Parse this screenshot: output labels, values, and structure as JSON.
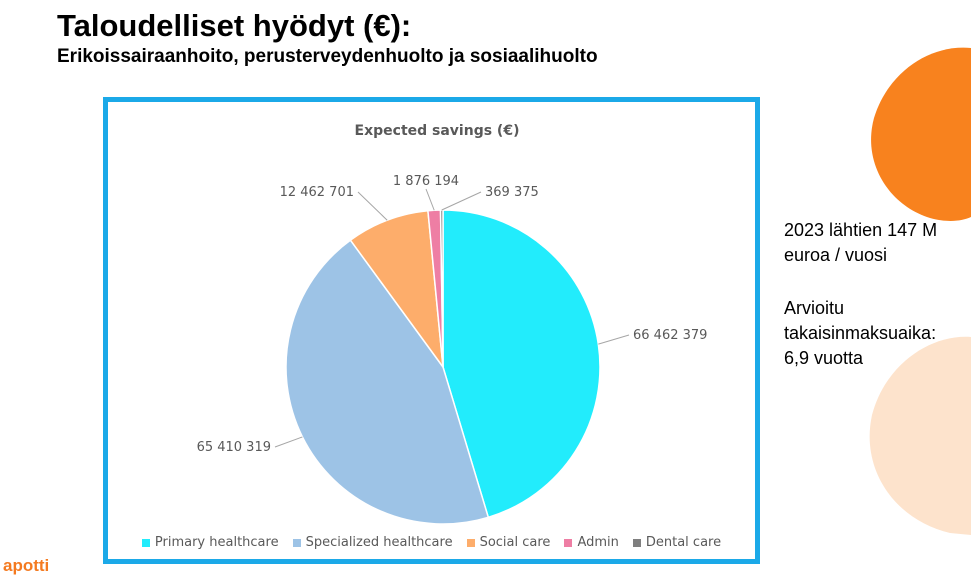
{
  "slide": {
    "title": "Taloudelliset hyödyt (€):",
    "subtitle": "Erikoissairaanhoito, perusterveydenhuolto ja sosiaalihuolto",
    "side_text_1": [
      "2023 lähtien 147 M",
      "euroa / vuosi"
    ],
    "side_text_2": [
      "Arvioitu",
      "takaisinmaksuaika:",
      "6,9 vuotta"
    ],
    "logo": "apotti"
  },
  "chart_data": {
    "type": "pie",
    "title": "Expected savings (€)",
    "legend_position": "bottom",
    "categories": [
      "Primary healthcare",
      "Specialized healthcare",
      "Social care",
      "Admin",
      "Dental care"
    ],
    "values": [
      66462379,
      65410319,
      12462701,
      1876194,
      369375
    ],
    "data_labels": [
      "66 462 379",
      "65 410 319",
      "12 462 701",
      "1 876 194",
      "369 375"
    ],
    "colors": [
      "#22ecfc",
      "#9dc3e6",
      "#fdad6b",
      "#ee7ea4",
      "#7f7f7f"
    ]
  },
  "decor_colors": {
    "frame": "#1ba9e8",
    "orange": "#f8821e",
    "peach": "#fde3cc",
    "logo": "#f47a20"
  }
}
